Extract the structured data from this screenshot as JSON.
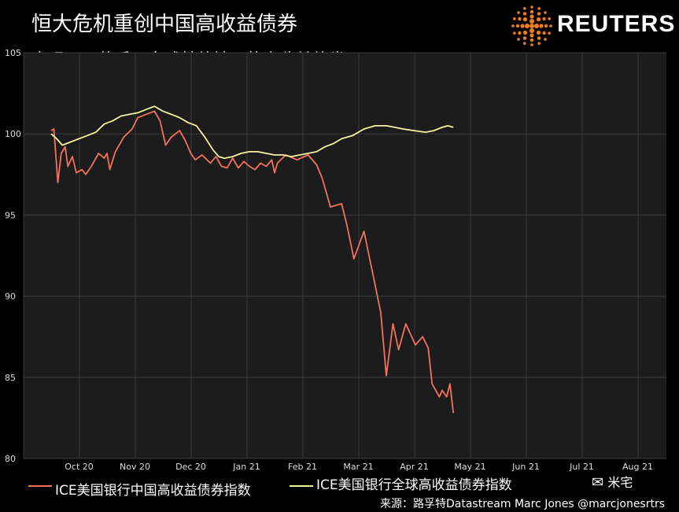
{
  "header": {
    "title": "恒大危机重创中国高收益债券",
    "subtitle": "表现远远落后于全球其他地区的高收益债券"
  },
  "brand": {
    "name": "REUTERS",
    "icon": "reuters-dots-logo"
  },
  "footer": {
    "source": "来源：路孚特Datastream",
    "author": "Marc Jones @marcjonesrtrs",
    "wechat": "米宅",
    "wechat_icon": "wechat-icon"
  },
  "chart_data": {
    "type": "line",
    "title": "恒大危机重创中国高收益债券",
    "subtitle": "表现远远落后于全球其他地区的高收益债券",
    "ylim": [
      80,
      105
    ],
    "yticks": [
      80,
      85,
      90,
      95,
      100,
      105
    ],
    "xticks": [
      "Oct 20",
      "Nov 20",
      "Dec 20",
      "Jan 21",
      "Feb 21",
      "Mar 21",
      "Apr 21",
      "May 21",
      "Jun 21",
      "Jul 21",
      "Aug 21"
    ],
    "grid": true,
    "legend_position": "bottom",
    "series": [
      {
        "name": "ICE美国银行中国高收益债券指数",
        "color": "#f4715e",
        "points": [
          [
            0,
            100.2
          ],
          [
            0.05,
            100.3
          ],
          [
            0.12,
            97
          ],
          [
            0.18,
            98.8
          ],
          [
            0.25,
            99.2
          ],
          [
            0.3,
            98
          ],
          [
            0.38,
            98.6
          ],
          [
            0.45,
            97.6
          ],
          [
            0.55,
            97.8
          ],
          [
            0.62,
            97.5
          ],
          [
            0.72,
            98
          ],
          [
            0.85,
            98.8
          ],
          [
            0.95,
            98.5
          ],
          [
            1.0,
            98.8
          ],
          [
            1.05,
            97.8
          ],
          [
            1.15,
            98.9
          ],
          [
            1.3,
            99.8
          ],
          [
            1.45,
            100.3
          ],
          [
            1.55,
            101.0
          ],
          [
            1.7,
            101.2
          ],
          [
            1.85,
            101.4
          ],
          [
            1.95,
            100.8
          ],
          [
            2.05,
            99.3
          ],
          [
            2.15,
            99.8
          ],
          [
            2.3,
            100.2
          ],
          [
            2.4,
            99.6
          ],
          [
            2.5,
            98.8
          ],
          [
            2.58,
            98.4
          ],
          [
            2.7,
            98.7
          ],
          [
            2.85,
            98.2
          ],
          [
            2.95,
            98.6
          ],
          [
            3.05,
            98.0
          ],
          [
            3.15,
            97.9
          ],
          [
            3.25,
            98.5
          ],
          [
            3.35,
            97.9
          ],
          [
            3.45,
            98.3
          ],
          [
            3.55,
            98.0
          ],
          [
            3.65,
            97.8
          ],
          [
            3.75,
            98.2
          ],
          [
            3.85,
            98.0
          ],
          [
            3.95,
            98.4
          ],
          [
            4.0,
            97.6
          ],
          [
            4.05,
            98.2
          ],
          [
            4.2,
            98.7
          ],
          [
            4.4,
            98.4
          ],
          [
            4.6,
            98.7
          ],
          [
            4.75,
            98.1
          ],
          [
            4.85,
            97.3
          ],
          [
            5.0,
            95.5
          ],
          [
            5.2,
            95.7
          ],
          [
            5.3,
            94.3
          ],
          [
            5.42,
            92.3
          ],
          [
            5.6,
            94.0
          ],
          [
            5.75,
            91.5
          ],
          [
            5.9,
            89.0
          ],
          [
            6.0,
            85.1
          ],
          [
            6.12,
            88.3
          ],
          [
            6.22,
            86.7
          ],
          [
            6.35,
            88.3
          ],
          [
            6.52,
            87.0
          ],
          [
            6.65,
            87.5
          ],
          [
            6.75,
            86.8
          ],
          [
            6.82,
            84.6
          ],
          [
            6.95,
            83.8
          ],
          [
            7.0,
            84.2
          ],
          [
            7.08,
            83.8
          ],
          [
            7.14,
            84.6
          ],
          [
            7.2,
            82.8
          ]
        ]
      },
      {
        "name": "ICE美国银行全球高收益债券指数",
        "color": "#f5f3a0",
        "points": [
          [
            0,
            100.0
          ],
          [
            0.1,
            99.7
          ],
          [
            0.2,
            99.3
          ],
          [
            0.35,
            99.5
          ],
          [
            0.5,
            99.7
          ],
          [
            0.65,
            99.9
          ],
          [
            0.8,
            100.1
          ],
          [
            0.95,
            100.6
          ],
          [
            1.1,
            100.8
          ],
          [
            1.25,
            101.1
          ],
          [
            1.4,
            101.2
          ],
          [
            1.55,
            101.3
          ],
          [
            1.7,
            101.5
          ],
          [
            1.85,
            101.7
          ],
          [
            2.0,
            101.4
          ],
          [
            2.15,
            101.2
          ],
          [
            2.3,
            101.0
          ],
          [
            2.45,
            100.7
          ],
          [
            2.6,
            100.5
          ],
          [
            2.75,
            99.8
          ],
          [
            2.9,
            99.0
          ],
          [
            3.0,
            98.6
          ],
          [
            3.1,
            98.5
          ],
          [
            3.25,
            98.6
          ],
          [
            3.4,
            98.8
          ],
          [
            3.55,
            98.9
          ],
          [
            3.7,
            98.9
          ],
          [
            3.85,
            98.8
          ],
          [
            4.0,
            98.7
          ],
          [
            4.15,
            98.7
          ],
          [
            4.3,
            98.6
          ],
          [
            4.45,
            98.7
          ],
          [
            4.6,
            98.8
          ],
          [
            4.75,
            98.9
          ],
          [
            4.9,
            99.2
          ],
          [
            5.05,
            99.4
          ],
          [
            5.2,
            99.7
          ],
          [
            5.4,
            99.9
          ],
          [
            5.6,
            100.3
          ],
          [
            5.8,
            100.5
          ],
          [
            6.0,
            100.5
          ],
          [
            6.15,
            100.4
          ],
          [
            6.3,
            100.3
          ],
          [
            6.5,
            100.2
          ],
          [
            6.7,
            100.1
          ],
          [
            6.85,
            100.2
          ],
          [
            7.0,
            100.4
          ],
          [
            7.1,
            100.5
          ],
          [
            7.2,
            100.4
          ]
        ]
      }
    ]
  }
}
